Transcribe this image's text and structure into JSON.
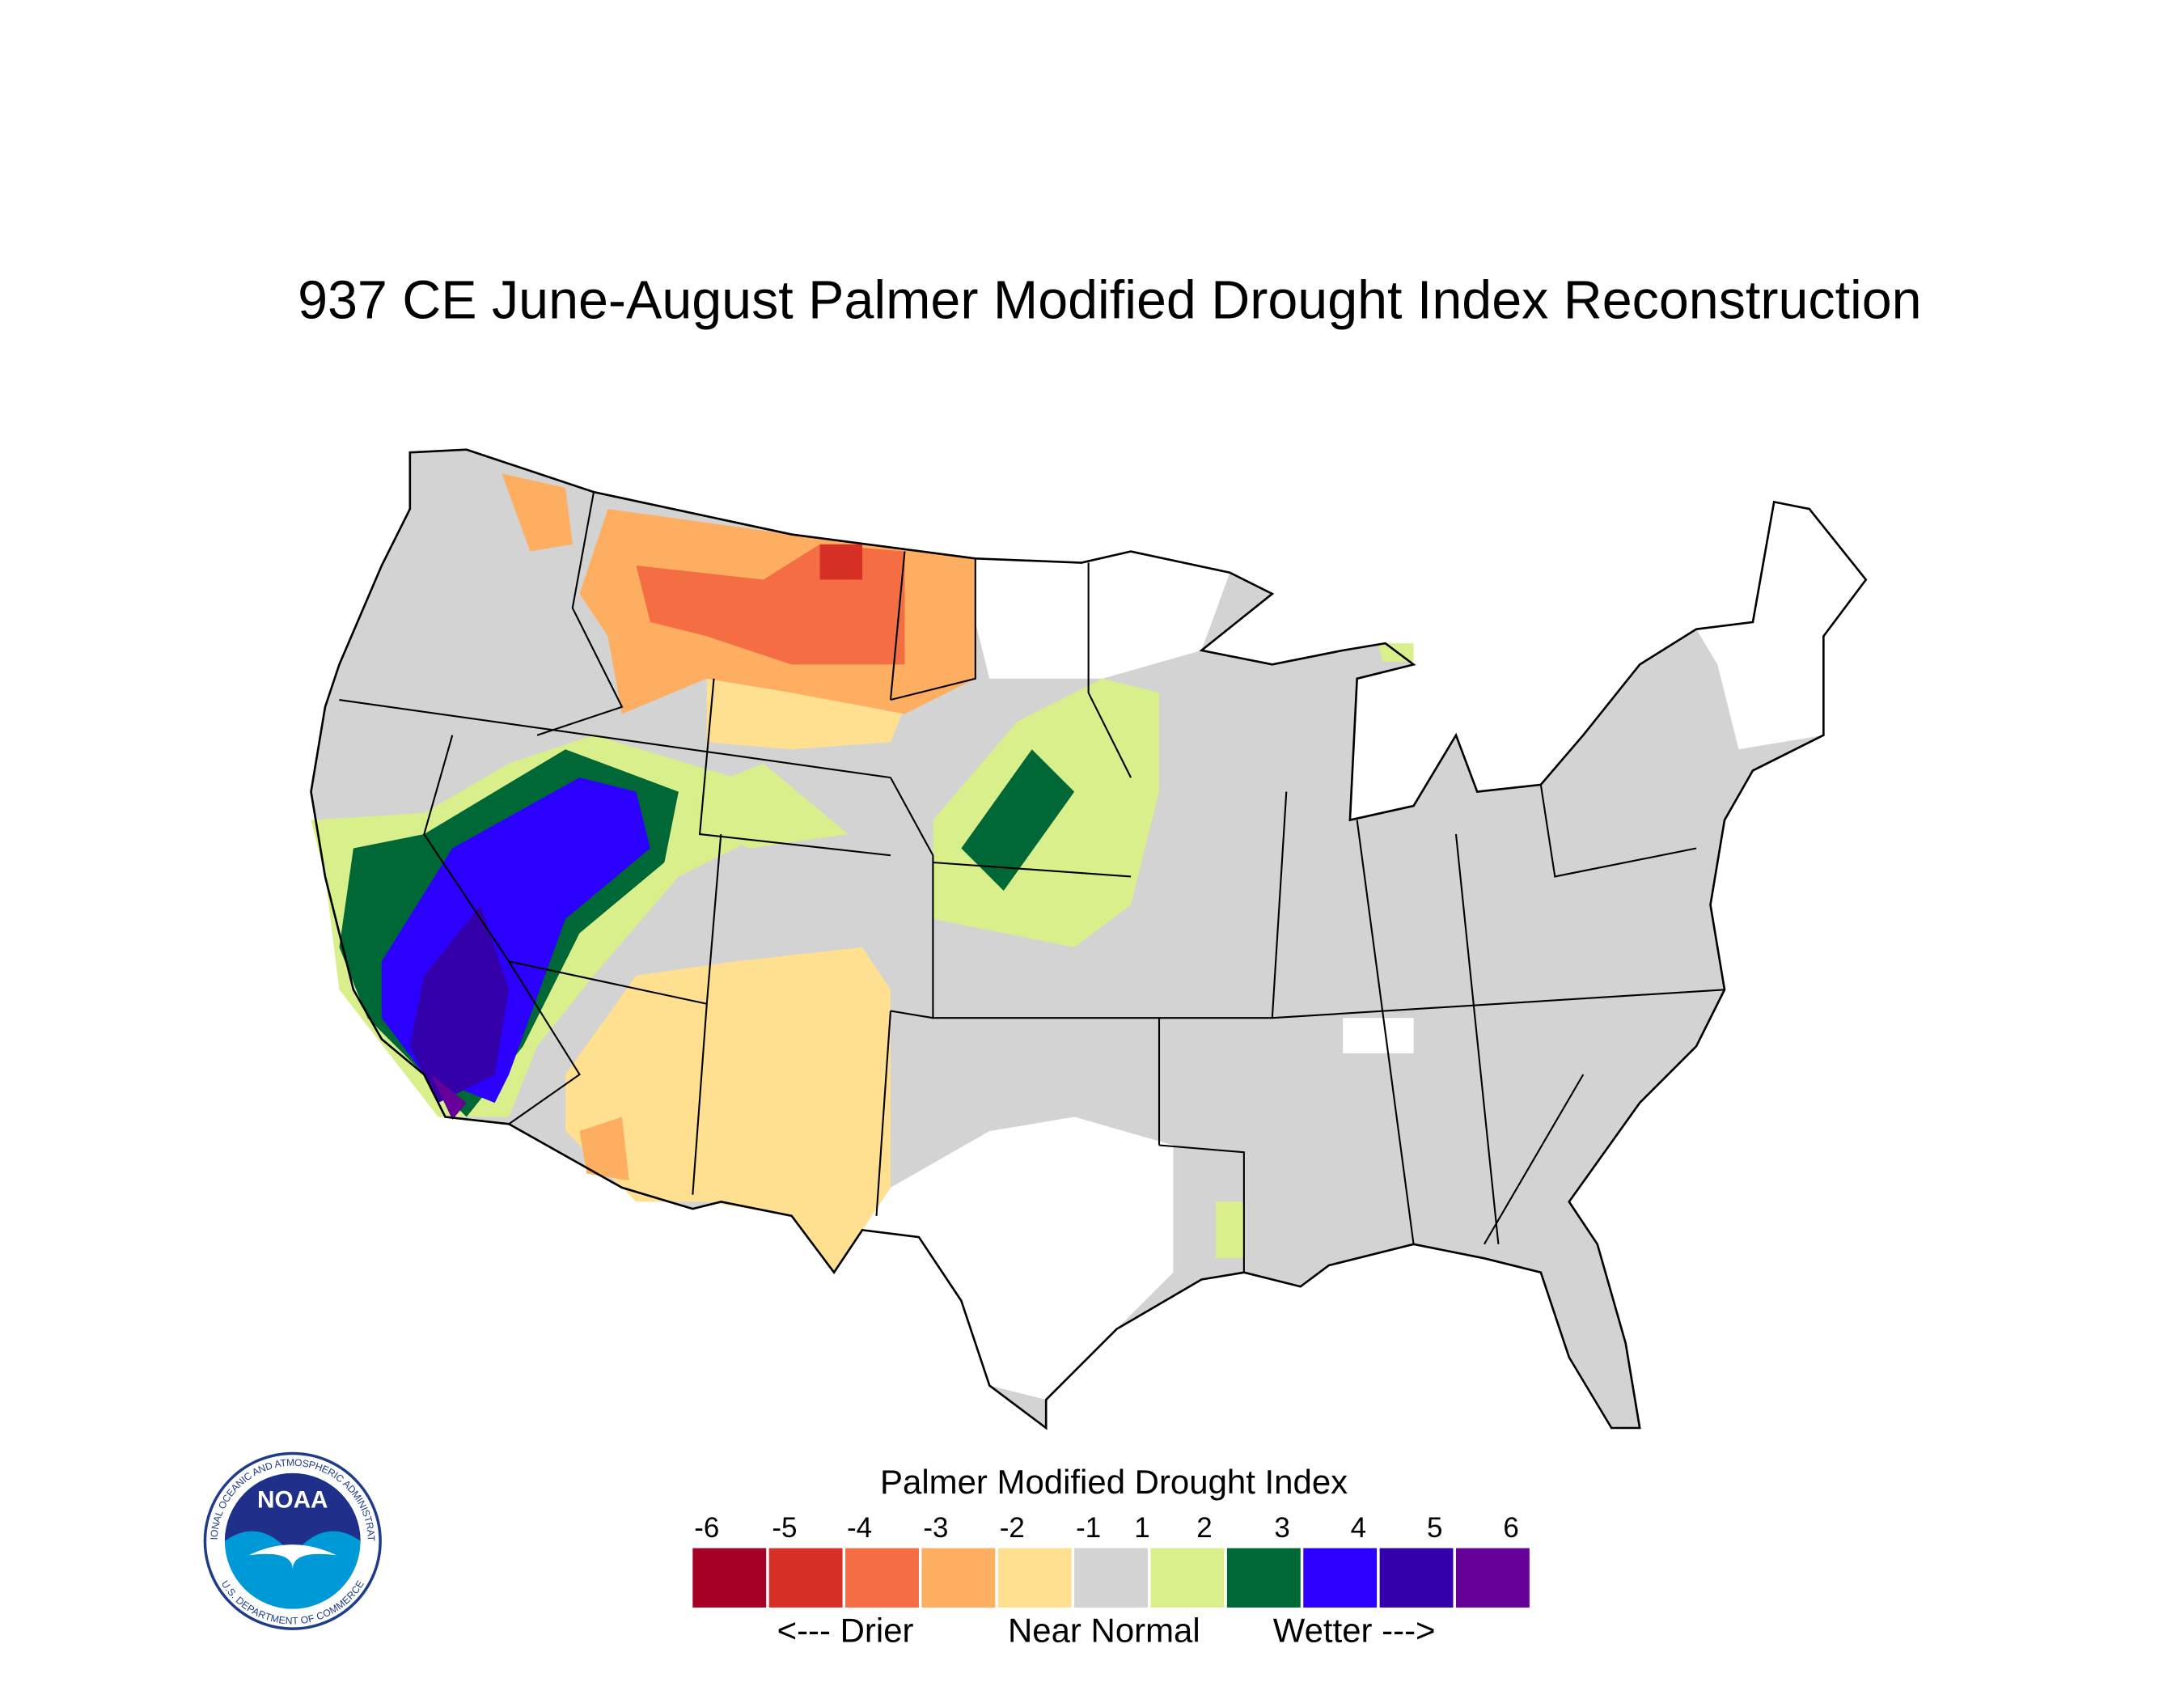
{
  "title": "937 CE  June-August  Palmer Modified Drought Index Reconstruction",
  "legend": {
    "title": "Palmer Modified Drought Index",
    "ticks": [
      -6,
      -5,
      -4,
      -3,
      -2,
      -1,
      1,
      2,
      3,
      4,
      5,
      6
    ],
    "colors": [
      "#a50026",
      "#d73027",
      "#f46d43",
      "#fdae61",
      "#fee090",
      "#d3d3d3",
      "#d9ef8b",
      "#006837",
      "#2b00ff",
      "#3300aa",
      "#660099"
    ],
    "labels": [
      "<--- Drier",
      "Near Normal",
      "Wetter --->"
    ]
  },
  "logo": {
    "text": "NOAA",
    "ring_top": "NATIONAL OCEANIC AND ATMOSPHERIC ADMINISTRATION",
    "ring_bottom": "U.S. DEPARTMENT OF COMMERCE"
  }
}
